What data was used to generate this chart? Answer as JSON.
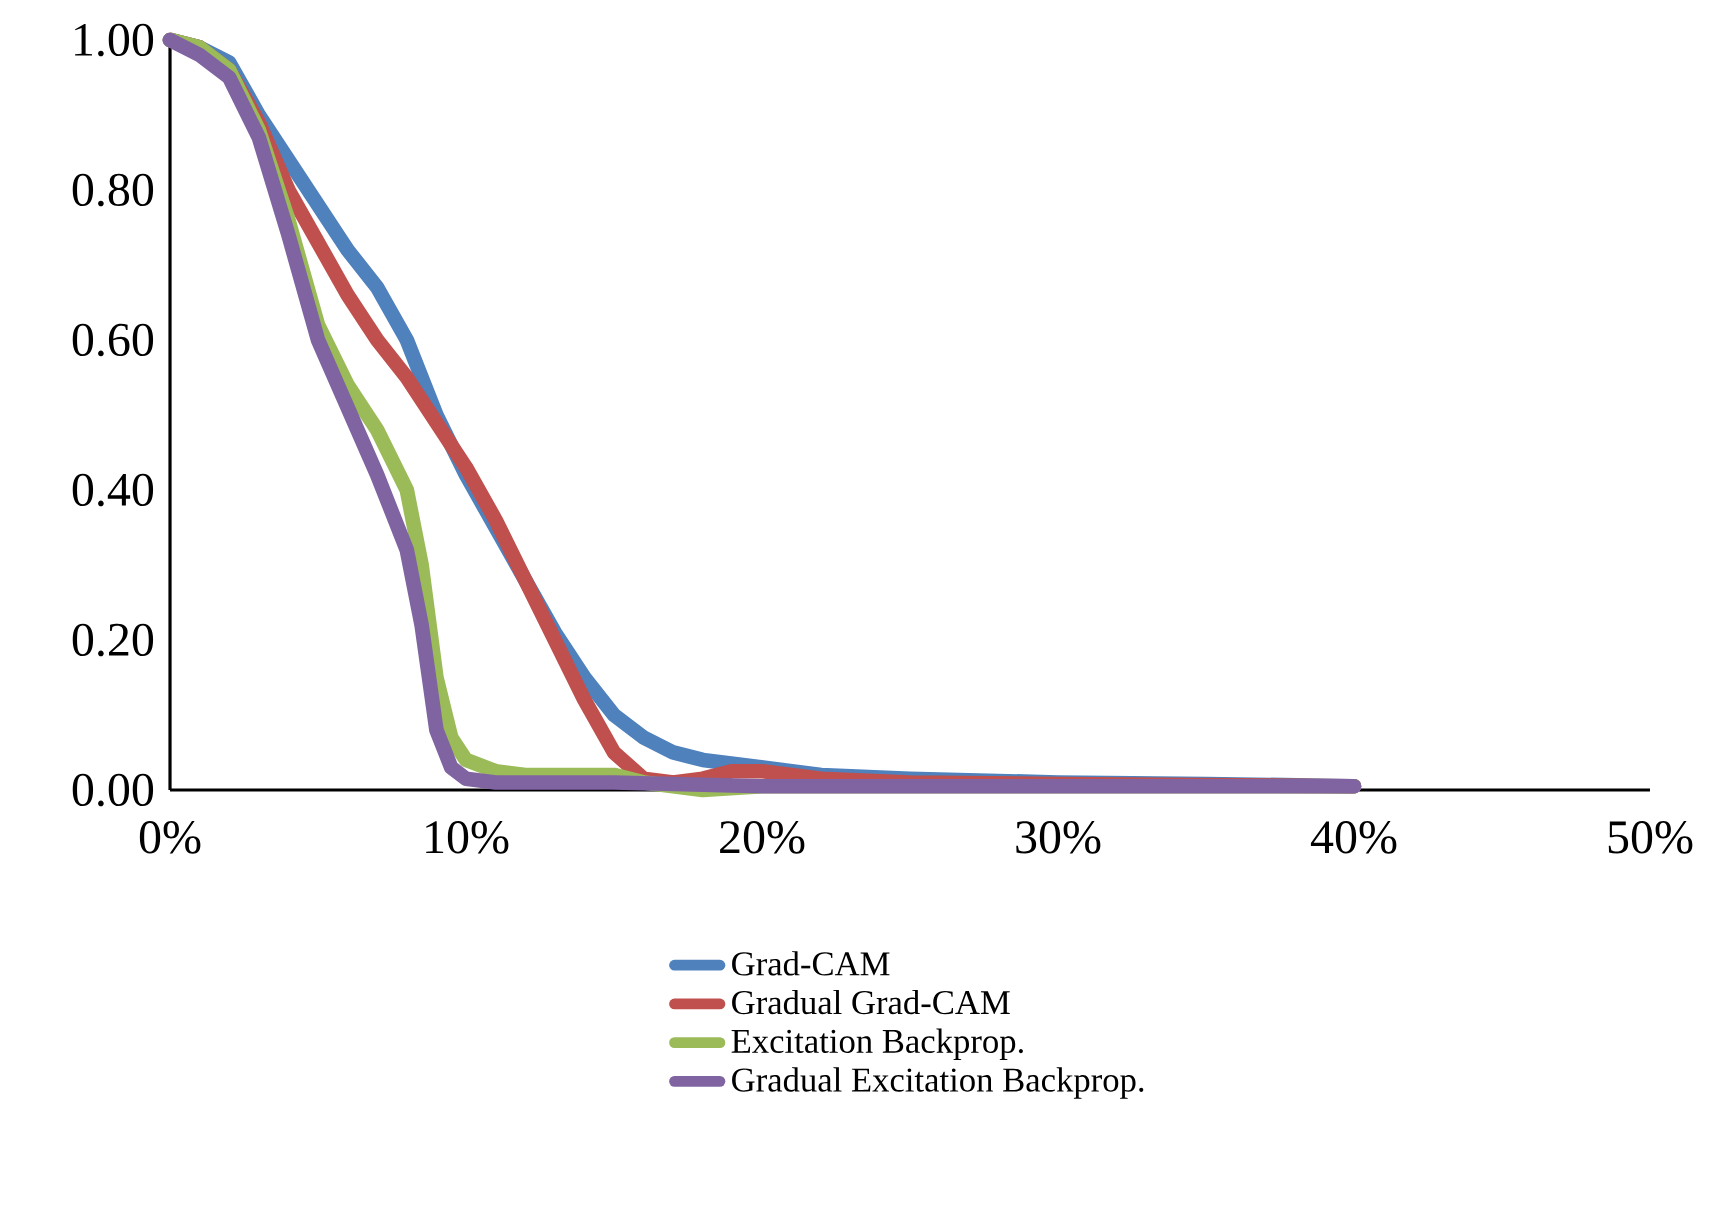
{
  "chart_data": {
    "type": "line",
    "legend": "bottom",
    "grid": false,
    "marker": "none",
    "line_style": "solid",
    "xlim": [
      0,
      50
    ],
    "ylim": [
      0,
      1
    ],
    "xticks": [
      {
        "value": 0,
        "label": "0%"
      },
      {
        "value": 10,
        "label": "10%"
      },
      {
        "value": 20,
        "label": "20%"
      },
      {
        "value": 30,
        "label": "30%"
      },
      {
        "value": 40,
        "label": "40%"
      },
      {
        "value": 50,
        "label": "50%"
      }
    ],
    "yticks": [
      {
        "value": 0,
        "label": "0.00"
      },
      {
        "value": 0.2,
        "label": "0.20"
      },
      {
        "value": 0.4,
        "label": "0.40"
      },
      {
        "value": 0.6,
        "label": "0.60"
      },
      {
        "value": 0.8,
        "label": "0.80"
      },
      {
        "value": 1,
        "label": "1.00"
      }
    ],
    "series": [
      {
        "name": "Grad-CAM",
        "color": "#4f81bd",
        "x": [
          0,
          1,
          2,
          3,
          4,
          5,
          6,
          7,
          8,
          9,
          10,
          11,
          12,
          13,
          14,
          15,
          16,
          17,
          18,
          20,
          22,
          25,
          30,
          35,
          40
        ],
        "values": [
          1,
          0.99,
          0.97,
          0.9,
          0.84,
          0.78,
          0.72,
          0.67,
          0.6,
          0.5,
          0.42,
          0.35,
          0.28,
          0.21,
          0.15,
          0.1,
          0.07,
          0.05,
          0.04,
          0.03,
          0.02,
          0.015,
          0.01,
          0.008,
          0.005
        ]
      },
      {
        "name": "Gradual Grad-CAM",
        "color": "#c0504d",
        "x": [
          0,
          1,
          2,
          3,
          4,
          5,
          6,
          7,
          8,
          9,
          10,
          11,
          12,
          13,
          14,
          15,
          16,
          17,
          18,
          19,
          20,
          22,
          25,
          30,
          40
        ],
        "values": [
          1,
          0.99,
          0.96,
          0.89,
          0.8,
          0.73,
          0.66,
          0.6,
          0.55,
          0.49,
          0.43,
          0.36,
          0.28,
          0.2,
          0.12,
          0.05,
          0.015,
          0.01,
          0.015,
          0.025,
          0.025,
          0.015,
          0.01,
          0.008,
          0.005
        ]
      },
      {
        "name": "Excitation Backprop.",
        "color": "#9bbb59",
        "x": [
          0,
          1,
          2,
          3,
          4,
          5,
          6,
          7,
          8,
          8.5,
          9,
          9.5,
          10,
          11,
          12,
          14,
          15,
          16,
          18,
          20,
          30,
          40
        ],
        "values": [
          1,
          0.99,
          0.96,
          0.88,
          0.76,
          0.62,
          0.54,
          0.48,
          0.4,
          0.3,
          0.15,
          0.07,
          0.04,
          0.025,
          0.02,
          0.02,
          0.02,
          0.01,
          0,
          0.005,
          0.005,
          0.005
        ]
      },
      {
        "name": "Gradual Excitation Backprop.",
        "color": "#8064a2",
        "x": [
          0,
          1,
          2,
          3,
          4,
          5,
          6,
          7,
          8,
          8.5,
          9,
          9.5,
          10,
          11,
          12,
          15,
          20,
          30,
          40
        ],
        "values": [
          1,
          0.98,
          0.95,
          0.87,
          0.74,
          0.6,
          0.51,
          0.42,
          0.32,
          0.22,
          0.08,
          0.03,
          0.015,
          0.01,
          0.01,
          0.01,
          0.005,
          0.005,
          0.005
        ]
      }
    ]
  }
}
